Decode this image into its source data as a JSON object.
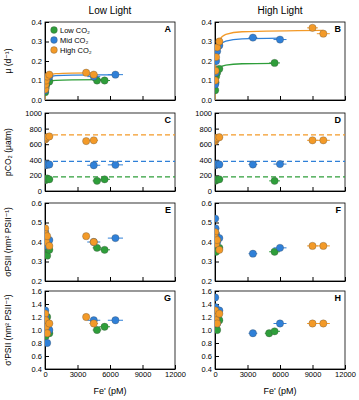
{
  "chart_data": [
    {
      "type": "scatter",
      "title": "Low Light",
      "annotations": [
        "A"
      ],
      "ylabel": "μ (d⁻¹)",
      "marker": "circle",
      "legend": "upper left",
      "tick_labels": "y",
      "xlim": [
        0,
        12000
      ],
      "xticks": [
        0,
        3000,
        6000,
        9000,
        12000
      ],
      "ylim": [
        0,
        0.4
      ],
      "yticks": [
        {
          "value": 0,
          "label": "0.0"
        },
        0.1,
        0.2,
        0.3,
        0.4
      ],
      "series": [
        {
          "name": "Low CO₂",
          "color": "#2e9e3a",
          "x": [
            20,
            50,
            100,
            200,
            400,
            4800,
            5500
          ],
          "values": [
            0.04,
            0.06,
            0.075,
            0.09,
            0.095,
            0.1,
            0.1
          ],
          "x_errors": [
            0,
            0,
            0,
            0,
            0,
            400,
            500
          ],
          "fit": {
            "x": [
              0,
              25,
              50,
              100,
              200,
              400,
              1000,
              2500,
              5500
            ],
            "values": [
              0,
              0.04,
              0.058,
              0.075,
              0.0875,
              0.0955,
              0.101,
              0.103,
              0.104
            ]
          }
        },
        {
          "name": "Mid CO₂",
          "color": "#2f80d8",
          "x": [
            20,
            50,
            100,
            200,
            400,
            4500,
            6500
          ],
          "values": [
            0.05,
            0.075,
            0.095,
            0.11,
            0.12,
            0.12,
            0.13
          ],
          "x_errors": [
            0,
            0,
            0,
            0,
            0,
            600,
            700
          ],
          "fit": {
            "x": [
              0,
              25,
              50,
              100,
              200,
              400,
              1000,
              2500,
              6500
            ],
            "values": [
              0,
              0.05,
              0.072,
              0.093,
              0.108,
              0.118,
              0.125,
              0.128,
              0.129
            ]
          }
        },
        {
          "name": "High CO₂",
          "color": "#f39a28",
          "x": [
            20,
            50,
            100,
            200,
            400,
            3800,
            4500
          ],
          "values": [
            0.055,
            0.08,
            0.1,
            0.12,
            0.13,
            0.14,
            0.13
          ],
          "x_errors": [
            0,
            0,
            0,
            0,
            0,
            300,
            400
          ],
          "fit": {
            "x": [
              0,
              25,
              50,
              100,
              200,
              400,
              1000,
              2500,
              4500
            ],
            "values": [
              0,
              0.054,
              0.078,
              0.1,
              0.117,
              0.127,
              0.135,
              0.138,
              0.139
            ]
          }
        }
      ]
    },
    {
      "type": "scatter",
      "title": "High Light",
      "annotations": [
        "B"
      ],
      "marker": "circle",
      "tick_labels": "y",
      "xlim": [
        0,
        12000
      ],
      "xticks": [
        0,
        3000,
        6000,
        9000,
        12000
      ],
      "ylim": [
        0,
        0.4
      ],
      "yticks": [
        {
          "value": 0,
          "label": "0.0"
        },
        0.1,
        0.2,
        0.3,
        0.4
      ],
      "series": [
        {
          "name": "Low CO₂",
          "color": "#2e9e3a",
          "x": [
            20,
            50,
            100,
            200,
            400,
            5500
          ],
          "values": [
            0.05,
            0.09,
            0.12,
            0.14,
            0.16,
            0.19
          ],
          "x_errors": [
            0,
            0,
            0,
            0,
            0,
            500
          ],
          "fit": {
            "x": [
              0,
              25,
              50,
              100,
              200,
              400,
              1000,
              2500,
              5500
            ],
            "values": [
              0,
              0.056,
              0.086,
              0.119,
              0.146,
              0.165,
              0.179,
              0.186,
              0.188
            ]
          }
        },
        {
          "name": "Mid CO₂",
          "color": "#2f80d8",
          "x": [
            20,
            50,
            100,
            200,
            400,
            3500,
            6000
          ],
          "values": [
            0.08,
            0.14,
            0.2,
            0.25,
            0.28,
            0.32,
            0.31
          ],
          "x_errors": [
            0,
            0,
            0,
            0,
            0,
            400,
            600
          ],
          "fit": {
            "x": [
              0,
              25,
              50,
              100,
              200,
              400,
              1000,
              2500,
              6000
            ],
            "values": [
              0,
              0.094,
              0.145,
              0.2,
              0.246,
              0.278,
              0.302,
              0.313,
              0.317
            ]
          }
        },
        {
          "name": "High CO₂",
          "color": "#f39a28",
          "x": [
            20,
            50,
            100,
            200,
            400,
            9000,
            10000
          ],
          "values": [
            0.1,
            0.15,
            0.22,
            0.27,
            0.3,
            0.37,
            0.34
          ],
          "x_errors": [
            0,
            0,
            0,
            0,
            0,
            500,
            600
          ],
          "fit": {
            "x": [
              0,
              25,
              50,
              100,
              200,
              400,
              1000,
              2500,
              10000
            ],
            "values": [
              0,
              0.095,
              0.15,
              0.212,
              0.267,
              0.306,
              0.336,
              0.35,
              0.357
            ]
          }
        }
      ]
    },
    {
      "type": "scatter",
      "annotations": [
        "C"
      ],
      "ylabel": "pCO₂ (μatm)",
      "marker": "circle",
      "tick_labels": "y",
      "xlim": [
        0,
        12000
      ],
      "xticks": [
        0,
        3000,
        6000,
        9000,
        12000
      ],
      "ylim": [
        0,
        1000
      ],
      "yticks": [
        0,
        200,
        400,
        600,
        800,
        1000
      ],
      "series": [
        {
          "name": "Low CO₂",
          "color": "#2e9e3a",
          "target": 180,
          "x": [
            20,
            50,
            100,
            200,
            400,
            4800,
            5500
          ],
          "values": [
            140,
            150,
            145,
            160,
            150,
            130,
            150
          ],
          "x_errors": [
            0,
            0,
            0,
            0,
            0,
            400,
            500
          ]
        },
        {
          "name": "Mid CO₂",
          "color": "#2f80d8",
          "target": 380,
          "x": [
            20,
            50,
            100,
            200,
            400,
            4500,
            6500
          ],
          "values": [
            330,
            340,
            345,
            335,
            340,
            330,
            335
          ],
          "x_errors": [
            0,
            0,
            0,
            0,
            0,
            600,
            700
          ]
        },
        {
          "name": "High CO₂",
          "color": "#f39a28",
          "target": 720,
          "x": [
            20,
            50,
            100,
            200,
            400,
            3800,
            4500
          ],
          "values": [
            660,
            670,
            680,
            690,
            700,
            640,
            650
          ],
          "x_errors": [
            0,
            0,
            0,
            0,
            0,
            300,
            400
          ]
        }
      ]
    },
    {
      "type": "scatter",
      "annotations": [
        "D"
      ],
      "marker": "circle",
      "tick_labels": "y",
      "xlim": [
        0,
        12000
      ],
      "xticks": [
        0,
        3000,
        6000,
        9000,
        12000
      ],
      "ylim": [
        0,
        1000
      ],
      "yticks": [
        0,
        200,
        400,
        600,
        800,
        1000
      ],
      "series": [
        {
          "name": "Low CO₂",
          "color": "#2e9e3a",
          "target": 180,
          "x": [
            20,
            50,
            100,
            200,
            400,
            5500
          ],
          "values": [
            130,
            140,
            150,
            145,
            150,
            130
          ],
          "x_errors": [
            0,
            0,
            0,
            0,
            0,
            500
          ]
        },
        {
          "name": "Mid CO₂",
          "color": "#2f80d8",
          "target": 380,
          "x": [
            20,
            50,
            100,
            200,
            400,
            3500,
            6000
          ],
          "values": [
            330,
            335,
            340,
            345,
            340,
            340,
            345
          ],
          "x_errors": [
            0,
            0,
            0,
            0,
            0,
            400,
            600
          ]
        },
        {
          "name": "High CO₂",
          "color": "#f39a28",
          "target": 720,
          "x": [
            20,
            50,
            100,
            200,
            400,
            9000,
            10000
          ],
          "values": [
            640,
            660,
            670,
            680,
            690,
            650,
            650
          ],
          "x_errors": [
            0,
            0,
            0,
            0,
            0,
            500,
            600
          ]
        }
      ]
    },
    {
      "type": "scatter",
      "annotations": [
        "E"
      ],
      "ylabel": "σPSII (nm² PSII⁻¹)",
      "marker": "circle",
      "tick_labels": "y",
      "xlim": [
        0,
        12000
      ],
      "xticks": [
        0,
        3000,
        6000,
        9000,
        12000
      ],
      "ylim": [
        0.2,
        0.6
      ],
      "yticks": [
        0.2,
        0.3,
        0.4,
        0.5,
        0.6
      ],
      "series": [
        {
          "name": "Low CO₂",
          "color": "#2e9e3a",
          "x": [
            20,
            50,
            100,
            200,
            400,
            4800,
            5500
          ],
          "values": [
            0.35,
            0.37,
            0.39,
            0.33,
            0.36,
            0.37,
            0.36
          ],
          "x_errors": [
            0,
            0,
            0,
            0,
            0,
            400,
            500
          ]
        },
        {
          "name": "Mid CO₂",
          "color": "#2f80d8",
          "x": [
            20,
            50,
            100,
            200,
            400,
            4500,
            6500
          ],
          "values": [
            0.45,
            0.42,
            0.4,
            0.38,
            0.41,
            0.4,
            0.42
          ],
          "x_errors": [
            0,
            0,
            0,
            0,
            0,
            600,
            700
          ]
        },
        {
          "name": "High CO₂",
          "color": "#f39a28",
          "x": [
            20,
            50,
            100,
            200,
            400,
            3800,
            4500
          ],
          "values": [
            0.47,
            0.44,
            0.4,
            0.43,
            0.38,
            0.43,
            0.4
          ],
          "x_errors": [
            0,
            0,
            0,
            0,
            0,
            300,
            400
          ]
        }
      ]
    },
    {
      "type": "scatter",
      "annotations": [
        "F"
      ],
      "marker": "circle",
      "tick_labels": "y",
      "xlim": [
        0,
        12000
      ],
      "xticks": [
        0,
        3000,
        6000,
        9000,
        12000
      ],
      "ylim": [
        0.2,
        0.6
      ],
      "yticks": [
        0.2,
        0.3,
        0.4,
        0.5,
        0.6
      ],
      "series": [
        {
          "name": "Low CO₂",
          "color": "#2e9e3a",
          "x": [
            20,
            50,
            100,
            200,
            400,
            5500
          ],
          "values": [
            0.4,
            0.38,
            0.35,
            0.42,
            0.37,
            0.35
          ],
          "x_errors": [
            0,
            0,
            0,
            0,
            0,
            500
          ]
        },
        {
          "name": "Mid CO₂",
          "color": "#2f80d8",
          "x": [
            20,
            50,
            100,
            200,
            400,
            3500,
            6000
          ],
          "values": [
            0.52,
            0.47,
            0.44,
            0.4,
            0.42,
            0.34,
            0.37
          ],
          "x_errors": [
            0,
            0,
            0,
            0,
            0,
            400,
            600
          ]
        },
        {
          "name": "High CO₂",
          "color": "#f39a28",
          "x": [
            20,
            50,
            100,
            200,
            400,
            9000,
            10000
          ],
          "values": [
            0.45,
            0.42,
            0.39,
            0.41,
            0.36,
            0.38,
            0.38
          ],
          "x_errors": [
            0,
            0,
            0,
            0,
            0,
            500,
            600
          ]
        }
      ]
    },
    {
      "type": "scatter",
      "annotations": [
        "G"
      ],
      "ylabel": "σ'PSII (nm² PSII⁻¹)",
      "xlabel": "Fe' (pM)",
      "marker": "circle",
      "xlim": [
        0,
        12000
      ],
      "xticks": [
        0,
        3000,
        6000,
        9000,
        12000
      ],
      "ylim": [
        0.4,
        1.6
      ],
      "yticks": [
        0.4,
        0.6,
        0.8,
        {
          "value": 1,
          "label": "1.0"
        },
        1.2,
        1.4,
        1.6
      ],
      "series": [
        {
          "name": "Low CO₂",
          "color": "#2e9e3a",
          "x": [
            20,
            50,
            100,
            200,
            400,
            4800,
            5500
          ],
          "values": [
            1.0,
            0.9,
            1.1,
            1.2,
            0.95,
            1.0,
            1.05
          ],
          "x_errors": [
            0,
            0,
            0,
            0,
            0,
            400,
            500
          ]
        },
        {
          "name": "Mid CO₂",
          "color": "#2f80d8",
          "x": [
            20,
            50,
            100,
            200,
            400,
            4500,
            6500
          ],
          "values": [
            1.3,
            1.2,
            1.1,
            0.8,
            1.0,
            1.15,
            1.15
          ],
          "x_errors": [
            0,
            0,
            0,
            0,
            0,
            600,
            700
          ]
        },
        {
          "name": "High CO₂",
          "color": "#f39a28",
          "x": [
            20,
            50,
            100,
            200,
            400,
            3800,
            4500
          ],
          "values": [
            1.25,
            1.15,
            1.05,
            0.95,
            1.1,
            1.2,
            1.1
          ],
          "x_errors": [
            0,
            0,
            0,
            0,
            0,
            300,
            400
          ]
        }
      ]
    },
    {
      "type": "scatter",
      "annotations": [
        "H"
      ],
      "xlabel": "Fe' (pM)",
      "marker": "circle",
      "xlim": [
        0,
        12000
      ],
      "xticks": [
        0,
        3000,
        6000,
        9000,
        12000
      ],
      "ylim": [
        0.4,
        1.6
      ],
      "yticks": [
        0.4,
        0.6,
        0.8,
        {
          "value": 1,
          "label": "1.0"
        },
        1.2,
        1.4,
        1.6
      ],
      "series": [
        {
          "name": "Low CO₂",
          "color": "#2e9e3a",
          "x": [
            20,
            50,
            100,
            200,
            400,
            5000,
            5500
          ],
          "values": [
            1.2,
            1.1,
            1.25,
            1.0,
            1.15,
            0.95,
            0.98
          ],
          "x_errors": [
            0,
            0,
            0,
            0,
            0,
            400,
            500
          ]
        },
        {
          "name": "Mid CO₂",
          "color": "#2f80d8",
          "x": [
            20,
            50,
            100,
            200,
            400,
            3500,
            6000
          ],
          "values": [
            1.5,
            1.35,
            1.2,
            1.1,
            1.3,
            0.95,
            1.1
          ],
          "x_errors": [
            0,
            0,
            0,
            0,
            0,
            400,
            600
          ]
        },
        {
          "name": "High CO₂",
          "color": "#f39a28",
          "x": [
            20,
            50,
            100,
            200,
            400,
            9000,
            10000
          ],
          "values": [
            1.3,
            1.2,
            1.15,
            1.1,
            1.25,
            1.1,
            1.1
          ],
          "x_errors": [
            0,
            0,
            0,
            0,
            0,
            500,
            600
          ]
        }
      ]
    }
  ]
}
